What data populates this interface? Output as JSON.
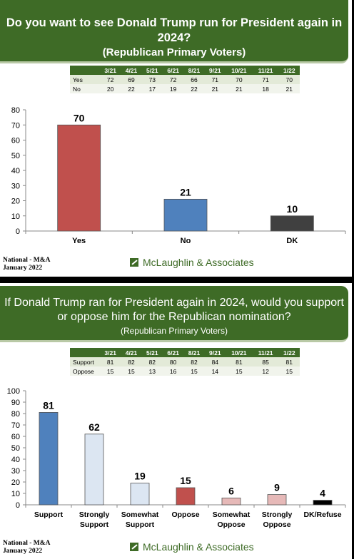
{
  "panel1": {
    "title_line1": "Do you want to see Donald Trump run for President again in 2024?",
    "title_line2": "(Republican Primary Voters)",
    "trend": {
      "headers": [
        "",
        "3/21",
        "4/21",
        "5/21",
        "6/21",
        "8/21",
        "9/21",
        "10/21",
        "11/21",
        "1/22"
      ],
      "rows": [
        [
          "Yes",
          "72",
          "69",
          "73",
          "72",
          "66",
          "71",
          "70",
          "71",
          "70"
        ],
        [
          "No",
          "20",
          "22",
          "17",
          "19",
          "22",
          "21",
          "21",
          "18",
          "21"
        ]
      ]
    },
    "footer_left_line1": "National - M&A",
    "footer_left_line2": "January 2022",
    "logo_text": "McLaughlin & Associates"
  },
  "panel2": {
    "title_line1": "If Donald Trump ran for President again in 2024, would you support",
    "title_line2": "or oppose him for the Republican nomination?",
    "subtitle": "(Republican Primary Voters)",
    "trend": {
      "headers": [
        "",
        "3/21",
        "4/21",
        "5/21",
        "6/21",
        "8/21",
        "9/21",
        "10/21",
        "11/21",
        "1/22"
      ],
      "rows": [
        [
          "Support",
          "81",
          "82",
          "82",
          "80",
          "82",
          "84",
          "81",
          "85",
          "81"
        ],
        [
          "Oppose",
          "15",
          "15",
          "13",
          "16",
          "15",
          "14",
          "15",
          "12",
          "15"
        ]
      ]
    },
    "footer_left_line1": "National - M&A",
    "footer_left_line2": "January 2022",
    "logo_text": "McLaughlin & Associates"
  },
  "chart_data": [
    {
      "type": "bar",
      "categories": [
        "Yes",
        "No",
        "DK"
      ],
      "values": [
        70,
        21,
        10
      ],
      "value_labels": [
        "70",
        "21",
        "10"
      ],
      "colors": [
        "#c0504d",
        "#4f81bd",
        "#404040"
      ],
      "ylim": [
        0,
        80
      ],
      "yticks": [
        0,
        10,
        20,
        30,
        40,
        50,
        60,
        70,
        80
      ],
      "grid": false
    },
    {
      "type": "bar",
      "categories": [
        [
          "Support"
        ],
        [
          "Strongly",
          "Support"
        ],
        [
          "Somewhat",
          "Support"
        ],
        [
          "Oppose"
        ],
        [
          "Somewhat",
          "Oppose"
        ],
        [
          "Strongly",
          "Oppose"
        ],
        [
          "DK/Refuse"
        ]
      ],
      "values": [
        81,
        62,
        19,
        15,
        6,
        9,
        4
      ],
      "value_labels": [
        "81",
        "62",
        "19",
        "15",
        "6",
        "9",
        "4"
      ],
      "colors": [
        "#4f81bd",
        "#dce6f2",
        "#dce6f2",
        "#c0504d",
        "#e6b9b8",
        "#e6b9b8",
        "#000000"
      ],
      "ylim": [
        0,
        100
      ],
      "yticks": [
        0,
        10,
        20,
        30,
        40,
        50,
        60,
        70,
        80,
        90,
        100
      ],
      "grid": false
    }
  ]
}
